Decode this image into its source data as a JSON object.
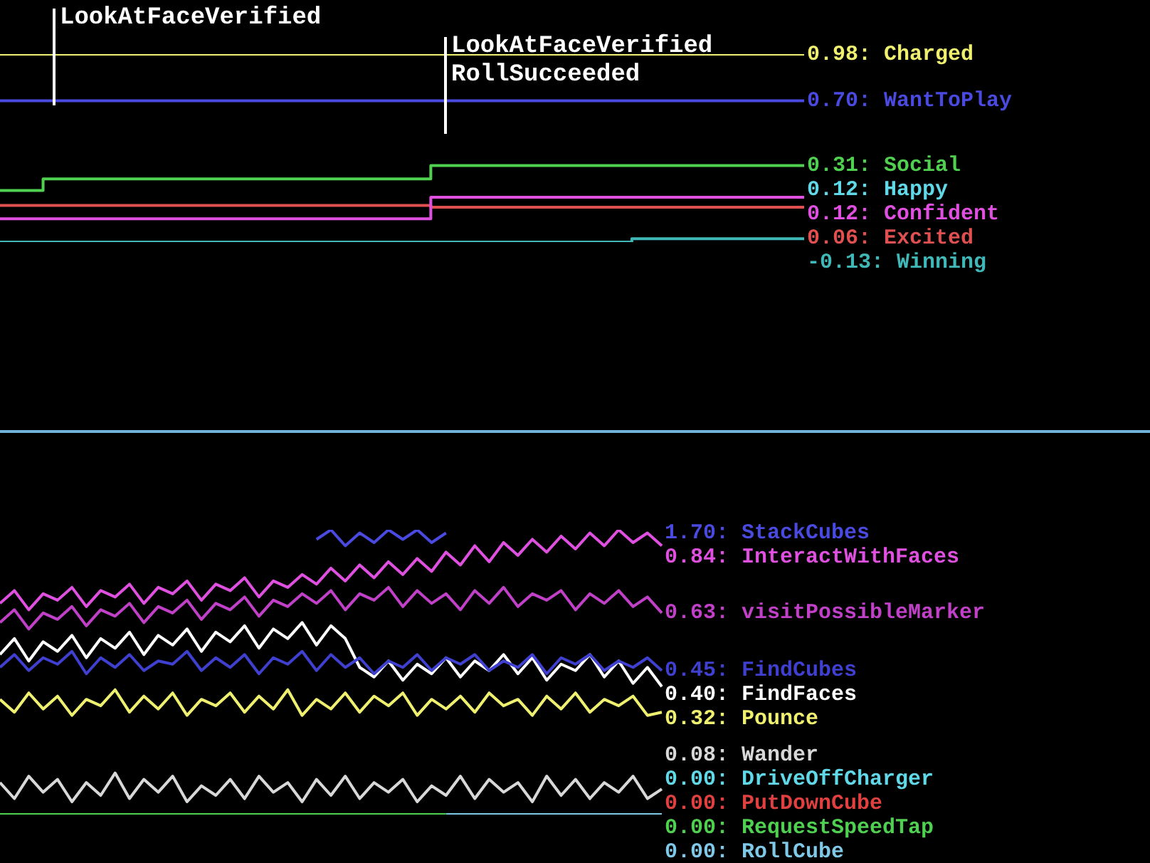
{
  "chart_data": [
    {
      "type": "step",
      "categories": [
        null,
        null,
        null,
        null,
        null,
        null,
        null,
        null,
        null,
        null,
        null,
        null,
        null,
        null,
        null,
        null,
        null,
        null,
        null,
        null,
        null,
        null,
        null,
        null,
        null,
        null,
        null,
        null,
        null,
        null,
        null,
        null,
        null,
        null,
        null,
        null,
        null,
        null,
        null,
        null,
        null,
        null,
        null,
        null,
        null,
        null,
        null,
        null,
        null,
        null,
        null,
        null,
        null,
        null,
        null,
        null,
        null
      ],
      "annotations": [
        "LookAtFaceVerified",
        "LookAtFaceVerified",
        "RollSucceeded"
      ],
      "series": [
        {
          "name": "Charged",
          "color": "#f0f070",
          "value_labels": [
            null,
            null,
            null,
            null,
            null,
            null,
            null,
            null,
            null,
            null,
            null,
            null,
            null,
            null,
            null,
            null,
            null,
            null,
            null,
            null,
            null,
            null,
            null,
            null,
            null,
            null,
            null,
            null,
            null,
            null,
            null,
            null,
            null,
            null,
            null,
            null,
            null,
            null,
            null,
            null,
            null,
            null,
            null,
            null,
            null,
            null,
            null,
            null,
            null,
            null,
            null,
            null,
            null,
            null,
            null,
            null,
            "0.98:"
          ],
          "values": [
            0.98,
            0.98,
            0.98,
            0.98,
            0.98,
            0.98,
            0.98,
            0.98,
            0.98,
            0.98,
            0.98,
            0.98,
            0.98,
            0.98,
            0.98,
            0.98,
            0.98,
            0.98,
            0.98,
            0.98,
            0.98,
            0.98,
            0.98,
            0.98,
            0.98,
            0.98,
            0.98,
            0.98,
            0.98,
            0.98,
            0.98,
            0.98,
            0.98,
            0.98,
            0.98,
            0.98,
            0.98,
            0.98,
            0.98,
            0.98,
            0.98,
            0.98,
            0.98,
            0.98,
            0.98,
            0.98,
            0.98,
            0.98,
            0.98,
            0.98,
            0.98,
            0.98,
            0.98,
            0.98,
            0.98,
            0.98,
            0.98
          ]
        },
        {
          "name": "WantToPlay",
          "color": "#4a4ae0",
          "value_labels": [
            null,
            null,
            null,
            null,
            null,
            null,
            null,
            null,
            null,
            null,
            null,
            null,
            null,
            null,
            null,
            null,
            null,
            null,
            null,
            null,
            null,
            null,
            null,
            null,
            null,
            null,
            null,
            null,
            null,
            null,
            null,
            null,
            null,
            null,
            null,
            null,
            null,
            null,
            null,
            null,
            null,
            null,
            null,
            null,
            null,
            null,
            null,
            null,
            null,
            null,
            null,
            null,
            null,
            null,
            null,
            null,
            "0.70:"
          ],
          "values": [
            0.7,
            0.7,
            0.7,
            0.7,
            0.7,
            0.7,
            0.7,
            0.7,
            0.7,
            0.7,
            0.7,
            0.7,
            0.7,
            0.7,
            0.7,
            0.7,
            0.7,
            0.7,
            0.7,
            0.7,
            0.7,
            0.7,
            0.7,
            0.7,
            0.7,
            0.7,
            0.7,
            0.7,
            0.7,
            0.7,
            0.7,
            0.7,
            0.7,
            0.7,
            0.7,
            0.7,
            0.7,
            0.7,
            0.7,
            0.7,
            0.7,
            0.7,
            0.7,
            0.7,
            0.7,
            0.7,
            0.7,
            0.7,
            0.7,
            0.7,
            0.7,
            0.7,
            0.7,
            0.7,
            0.7,
            0.7,
            0.7
          ]
        },
        {
          "name": "Social",
          "color": "#50d050",
          "value_labels": [
            null,
            null,
            null,
            null,
            null,
            null,
            null,
            null,
            null,
            null,
            null,
            null,
            null,
            null,
            null,
            null,
            null,
            null,
            null,
            null,
            null,
            null,
            null,
            null,
            null,
            null,
            null,
            null,
            null,
            null,
            null,
            null,
            null,
            null,
            null,
            null,
            null,
            null,
            null,
            null,
            null,
            null,
            null,
            null,
            null,
            null,
            null,
            null,
            null,
            null,
            null,
            null,
            null,
            null,
            null,
            null,
            "0.31:"
          ],
          "values": [
            0.16,
            0.16,
            0.16,
            0.16,
            0.23,
            0.23,
            0.23,
            0.23,
            0.23,
            0.23,
            0.23,
            0.23,
            0.23,
            0.23,
            0.23,
            0.23,
            0.23,
            0.23,
            0.23,
            0.23,
            0.23,
            0.23,
            0.23,
            0.23,
            0.23,
            0.23,
            0.23,
            0.23,
            0.23,
            0.23,
            0.23,
            0.31,
            0.31,
            0.31,
            0.31,
            0.31,
            0.31,
            0.31,
            0.31,
            0.31,
            0.31,
            0.31,
            0.31,
            0.31,
            0.31,
            0.31,
            0.31,
            0.31,
            0.31,
            0.31,
            0.31,
            0.31,
            0.31,
            0.31,
            0.31,
            0.31,
            0.31
          ]
        },
        {
          "name": "Happy",
          "color": "#60d8e8",
          "value_labels": [
            null,
            null,
            null,
            null,
            null,
            null,
            null,
            null,
            null,
            null,
            null,
            null,
            null,
            null,
            null,
            null,
            null,
            null,
            null,
            null,
            null,
            null,
            null,
            null,
            null,
            null,
            null,
            null,
            null,
            null,
            null,
            null,
            null,
            null,
            null,
            null,
            null,
            null,
            null,
            null,
            null,
            null,
            null,
            null,
            null,
            null,
            null,
            null,
            null,
            null,
            null,
            null,
            null,
            null,
            null,
            null,
            "0.12:"
          ],
          "values": [
            null,
            null,
            null,
            null,
            null,
            null,
            null,
            null,
            null,
            null,
            null,
            null,
            null,
            null,
            null,
            null,
            null,
            null,
            null,
            null,
            null,
            null,
            null,
            null,
            null,
            null,
            null,
            null,
            null,
            null,
            null,
            null,
            null,
            null,
            null,
            null,
            null,
            null,
            null,
            null,
            null,
            null,
            null,
            null,
            null,
            null,
            null,
            null,
            null,
            null,
            null,
            null,
            null,
            null,
            null,
            null,
            null
          ]
        },
        {
          "name": "Confident",
          "color": "#e050e0",
          "value_labels": [
            null,
            null,
            null,
            null,
            null,
            null,
            null,
            null,
            null,
            null,
            null,
            null,
            null,
            null,
            null,
            null,
            null,
            null,
            null,
            null,
            null,
            null,
            null,
            null,
            null,
            null,
            null,
            null,
            null,
            null,
            null,
            null,
            null,
            null,
            null,
            null,
            null,
            null,
            null,
            null,
            null,
            null,
            null,
            null,
            null,
            null,
            null,
            null,
            null,
            null,
            null,
            null,
            null,
            null,
            null,
            null,
            "0.12:"
          ],
          "values": [
            -0.01,
            -0.01,
            -0.01,
            -0.01,
            -0.01,
            -0.01,
            -0.01,
            -0.01,
            -0.01,
            -0.01,
            -0.01,
            -0.01,
            -0.01,
            -0.01,
            -0.01,
            -0.01,
            -0.01,
            -0.01,
            -0.01,
            -0.01,
            -0.01,
            -0.01,
            -0.01,
            -0.01,
            -0.01,
            -0.01,
            -0.01,
            -0.01,
            -0.01,
            -0.01,
            -0.01,
            0.12,
            0.12,
            0.12,
            0.12,
            0.12,
            0.12,
            0.12,
            0.12,
            0.12,
            0.12,
            0.12,
            0.12,
            0.12,
            0.12,
            0.12,
            0.12,
            0.12,
            0.12,
            0.12,
            0.12,
            0.12,
            0.12,
            0.12,
            0.12,
            0.12,
            0.12
          ]
        },
        {
          "name": "Excited",
          "color": "#e05050",
          "value_labels": [
            null,
            null,
            null,
            null,
            null,
            null,
            null,
            null,
            null,
            null,
            null,
            null,
            null,
            null,
            null,
            null,
            null,
            null,
            null,
            null,
            null,
            null,
            null,
            null,
            null,
            null,
            null,
            null,
            null,
            null,
            null,
            null,
            null,
            null,
            null,
            null,
            null,
            null,
            null,
            null,
            null,
            null,
            null,
            null,
            null,
            null,
            null,
            null,
            null,
            null,
            null,
            null,
            null,
            null,
            null,
            null,
            "0.06:"
          ],
          "values": [
            0.07,
            0.07,
            0.07,
            0.07,
            0.07,
            0.07,
            0.07,
            0.07,
            0.07,
            0.07,
            0.07,
            0.07,
            0.07,
            0.07,
            0.07,
            0.07,
            0.07,
            0.07,
            0.07,
            0.07,
            0.07,
            0.07,
            0.07,
            0.07,
            0.07,
            0.07,
            0.07,
            0.07,
            0.07,
            0.07,
            0.07,
            0.06,
            0.06,
            0.06,
            0.06,
            0.06,
            0.06,
            0.06,
            0.06,
            0.06,
            0.06,
            0.06,
            0.06,
            0.06,
            0.06,
            0.06,
            0.06,
            0.06,
            0.06,
            0.06,
            0.06,
            0.06,
            0.06,
            0.06,
            0.06,
            0.06,
            0.06
          ]
        },
        {
          "name": "Winning",
          "color": "#40b8b8",
          "value_labels": [
            null,
            null,
            null,
            null,
            null,
            null,
            null,
            null,
            null,
            null,
            null,
            null,
            null,
            null,
            null,
            null,
            null,
            null,
            null,
            null,
            null,
            null,
            null,
            null,
            null,
            null,
            null,
            null,
            null,
            null,
            null,
            null,
            null,
            null,
            null,
            null,
            null,
            null,
            null,
            null,
            null,
            null,
            null,
            null,
            null,
            null,
            null,
            null,
            null,
            null,
            null,
            null,
            null,
            null,
            null,
            null,
            "-0.13:"
          ],
          "values": [
            -0.15,
            -0.15,
            -0.15,
            -0.15,
            -0.15,
            -0.15,
            -0.15,
            -0.15,
            -0.15,
            -0.15,
            -0.15,
            -0.15,
            -0.15,
            -0.15,
            -0.15,
            -0.15,
            -0.15,
            -0.15,
            -0.15,
            -0.15,
            -0.15,
            -0.15,
            -0.15,
            -0.15,
            -0.15,
            -0.15,
            -0.15,
            -0.15,
            -0.15,
            -0.15,
            -0.15,
            -0.15,
            -0.15,
            -0.15,
            -0.15,
            -0.15,
            -0.15,
            -0.15,
            -0.15,
            -0.15,
            -0.15,
            -0.15,
            -0.15,
            -0.15,
            -0.15,
            -0.13,
            -0.13,
            -0.13,
            -0.13,
            -0.13,
            -0.13,
            -0.13,
            -0.13,
            -0.13,
            -0.13,
            -0.13,
            -0.13
          ]
        }
      ]
    },
    {
      "type": "line",
      "categories": [
        null,
        null,
        null,
        null,
        null,
        null,
        null,
        null,
        null,
        null,
        null,
        null,
        null,
        null,
        null,
        null,
        null,
        null,
        null,
        null,
        null,
        null,
        null,
        null,
        null,
        null,
        null,
        null,
        null,
        null,
        null,
        null,
        null,
        null,
        null,
        null,
        null,
        null,
        null,
        null,
        null,
        null,
        null,
        null,
        null,
        null,
        null
      ],
      "series": [
        {
          "name": "StackCubes",
          "color": "#4a4ae0",
          "value_labels": [
            null,
            null,
            null,
            null,
            null,
            null,
            null,
            null,
            null,
            null,
            null,
            null,
            null,
            null,
            null,
            null,
            null,
            null,
            null,
            null,
            null,
            null,
            null,
            null,
            null,
            null,
            null,
            null,
            null,
            null,
            null,
            null,
            null,
            null,
            null,
            null,
            null,
            null,
            null,
            null,
            null,
            null,
            null,
            null,
            null,
            null,
            "1.70:"
          ],
          "values": [
            null,
            null,
            null,
            null,
            null,
            null,
            null,
            null,
            null,
            null,
            null,
            null,
            null,
            null,
            null,
            null,
            null,
            null,
            null,
            null,
            null,
            null,
            0.86,
            0.89,
            0.84,
            0.88,
            0.85,
            0.89,
            0.86,
            0.89,
            0.85,
            0.88,
            null,
            null,
            null,
            null,
            null,
            null,
            null,
            null,
            null,
            null,
            null,
            null,
            null,
            null,
            null
          ]
        },
        {
          "name": "InteractWithFaces",
          "color": "#e050e0",
          "value_labels": [
            null,
            null,
            null,
            null,
            null,
            null,
            null,
            null,
            null,
            null,
            null,
            null,
            null,
            null,
            null,
            null,
            null,
            null,
            null,
            null,
            null,
            null,
            null,
            null,
            null,
            null,
            null,
            null,
            null,
            null,
            null,
            null,
            null,
            null,
            null,
            null,
            null,
            null,
            null,
            null,
            null,
            null,
            null,
            null,
            null,
            null,
            "0.84:"
          ],
          "values": [
            0.66,
            0.7,
            0.64,
            0.69,
            0.67,
            0.71,
            0.65,
            0.7,
            0.68,
            0.72,
            0.66,
            0.71,
            0.69,
            0.73,
            0.67,
            0.72,
            0.7,
            0.74,
            0.68,
            0.73,
            0.71,
            0.75,
            0.72,
            0.77,
            0.73,
            0.78,
            0.74,
            0.79,
            0.75,
            0.8,
            0.76,
            0.82,
            0.78,
            0.84,
            0.79,
            0.85,
            0.81,
            0.86,
            0.82,
            0.87,
            0.83,
            0.88,
            0.84,
            0.89,
            0.85,
            0.88,
            0.84
          ]
        },
        {
          "name": "visitPossibleMarker",
          "color": "#c040c8",
          "value_labels": [
            null,
            null,
            null,
            null,
            null,
            null,
            null,
            null,
            null,
            null,
            null,
            null,
            null,
            null,
            null,
            null,
            null,
            null,
            null,
            null,
            null,
            null,
            null,
            null,
            null,
            null,
            null,
            null,
            null,
            null,
            null,
            null,
            null,
            null,
            null,
            null,
            null,
            null,
            null,
            null,
            null,
            null,
            null,
            null,
            null,
            null,
            "0.63:"
          ],
          "values": [
            0.6,
            0.64,
            0.58,
            0.63,
            0.61,
            0.65,
            0.59,
            0.64,
            0.62,
            0.66,
            0.6,
            0.65,
            0.63,
            0.67,
            0.61,
            0.66,
            0.64,
            0.68,
            0.62,
            0.67,
            0.65,
            0.69,
            0.66,
            0.7,
            0.64,
            0.69,
            0.67,
            0.71,
            0.65,
            0.7,
            0.66,
            0.69,
            0.64,
            0.7,
            0.66,
            0.71,
            0.65,
            0.69,
            0.67,
            0.7,
            0.64,
            0.69,
            0.66,
            0.7,
            0.65,
            0.68,
            0.63
          ]
        },
        {
          "name": "FindCubes",
          "color": "#4040d0",
          "value_labels": [
            null,
            null,
            null,
            null,
            null,
            null,
            null,
            null,
            null,
            null,
            null,
            null,
            null,
            null,
            null,
            null,
            null,
            null,
            null,
            null,
            null,
            null,
            null,
            null,
            null,
            null,
            null,
            null,
            null,
            null,
            null,
            null,
            null,
            null,
            null,
            null,
            null,
            null,
            null,
            null,
            null,
            null,
            null,
            null,
            null,
            null,
            "0.45:"
          ],
          "values": [
            0.46,
            0.5,
            0.45,
            0.49,
            0.47,
            0.51,
            0.44,
            0.49,
            0.46,
            0.5,
            0.45,
            0.48,
            0.47,
            0.51,
            0.45,
            0.49,
            0.46,
            0.5,
            0.44,
            0.49,
            0.47,
            0.51,
            0.45,
            0.5,
            0.46,
            0.49,
            0.44,
            0.48,
            0.46,
            0.5,
            0.45,
            0.49,
            0.47,
            0.5,
            0.45,
            0.48,
            0.46,
            0.5,
            0.44,
            0.49,
            0.47,
            0.5,
            0.45,
            0.48,
            0.46,
            0.49,
            0.45
          ]
        },
        {
          "name": "FindFaces",
          "color": "#ffffff",
          "value_labels": [
            null,
            null,
            null,
            null,
            null,
            null,
            null,
            null,
            null,
            null,
            null,
            null,
            null,
            null,
            null,
            null,
            null,
            null,
            null,
            null,
            null,
            null,
            null,
            null,
            null,
            null,
            null,
            null,
            null,
            null,
            null,
            null,
            null,
            null,
            null,
            null,
            null,
            null,
            null,
            null,
            null,
            null,
            null,
            null,
            null,
            null,
            "0.40:"
          ],
          "values": [
            0.5,
            0.55,
            0.48,
            0.54,
            0.51,
            0.56,
            0.49,
            0.55,
            0.52,
            0.57,
            0.5,
            0.56,
            0.53,
            0.58,
            0.51,
            0.57,
            0.54,
            0.59,
            0.52,
            0.58,
            0.55,
            0.6,
            0.53,
            0.59,
            0.55,
            0.46,
            0.43,
            0.48,
            0.42,
            0.47,
            0.44,
            0.49,
            0.43,
            0.48,
            0.45,
            0.5,
            0.44,
            0.49,
            0.42,
            0.47,
            0.45,
            0.5,
            0.43,
            0.48,
            0.41,
            0.46,
            0.4
          ]
        },
        {
          "name": "Pounce",
          "color": "#f0f070",
          "value_labels": [
            null,
            null,
            null,
            null,
            null,
            null,
            null,
            null,
            null,
            null,
            null,
            null,
            null,
            null,
            null,
            null,
            null,
            null,
            null,
            null,
            null,
            null,
            null,
            null,
            null,
            null,
            null,
            null,
            null,
            null,
            null,
            null,
            null,
            null,
            null,
            null,
            null,
            null,
            null,
            null,
            null,
            null,
            null,
            null,
            null,
            null,
            "0.32:"
          ],
          "values": [
            0.36,
            0.32,
            0.38,
            0.33,
            0.37,
            0.31,
            0.36,
            0.34,
            0.39,
            0.32,
            0.37,
            0.33,
            0.38,
            0.31,
            0.36,
            0.34,
            0.38,
            0.32,
            0.37,
            0.33,
            0.39,
            0.31,
            0.36,
            0.33,
            0.38,
            0.32,
            0.37,
            0.34,
            0.38,
            0.31,
            0.36,
            0.33,
            0.37,
            0.32,
            0.38,
            0.34,
            0.36,
            0.31,
            0.37,
            0.33,
            0.38,
            0.32,
            0.36,
            0.34,
            0.37,
            0.31,
            0.32
          ]
        },
        {
          "name": "Wander",
          "color": "#d8d8d8",
          "value_labels": [
            null,
            null,
            null,
            null,
            null,
            null,
            null,
            null,
            null,
            null,
            null,
            null,
            null,
            null,
            null,
            null,
            null,
            null,
            null,
            null,
            null,
            null,
            null,
            null,
            null,
            null,
            null,
            null,
            null,
            null,
            null,
            null,
            null,
            null,
            null,
            null,
            null,
            null,
            null,
            null,
            null,
            null,
            null,
            null,
            null,
            null,
            "0.08:"
          ],
          "values": [
            0.1,
            0.05,
            0.12,
            0.07,
            0.11,
            0.04,
            0.1,
            0.06,
            0.13,
            0.05,
            0.11,
            0.07,
            0.12,
            0.04,
            0.09,
            0.06,
            0.11,
            0.05,
            0.12,
            0.07,
            0.1,
            0.04,
            0.11,
            0.06,
            0.12,
            0.05,
            0.1,
            0.07,
            0.11,
            0.04,
            0.09,
            0.06,
            0.12,
            0.05,
            0.11,
            0.07,
            0.1,
            0.04,
            0.12,
            0.06,
            0.11,
            0.05,
            0.1,
            0.07,
            0.12,
            0.05,
            0.08
          ]
        },
        {
          "name": "DriveOffCharger",
          "color": "#60d8e8",
          "value_labels": [
            null,
            null,
            null,
            null,
            null,
            null,
            null,
            null,
            null,
            null,
            null,
            null,
            null,
            null,
            null,
            null,
            null,
            null,
            null,
            null,
            null,
            null,
            null,
            null,
            null,
            null,
            null,
            null,
            null,
            null,
            null,
            null,
            null,
            null,
            null,
            null,
            null,
            null,
            null,
            null,
            null,
            null,
            null,
            null,
            null,
            null,
            "0.00:"
          ],
          "values": [
            null,
            null,
            null,
            null,
            null,
            null,
            null,
            null,
            null,
            null,
            null,
            null,
            null,
            null,
            null,
            null,
            null,
            null,
            null,
            null,
            null,
            null,
            null,
            null,
            null,
            null,
            null,
            null,
            null,
            null,
            null,
            null,
            null,
            null,
            null,
            null,
            null,
            null,
            null,
            null,
            null,
            null,
            null,
            null,
            null,
            null,
            null
          ]
        },
        {
          "name": "PutDownCube",
          "color": "#e04040",
          "value_labels": [
            null,
            null,
            null,
            null,
            null,
            null,
            null,
            null,
            null,
            null,
            null,
            null,
            null,
            null,
            null,
            null,
            null,
            null,
            null,
            null,
            null,
            null,
            null,
            null,
            null,
            null,
            null,
            null,
            null,
            null,
            null,
            null,
            null,
            null,
            null,
            null,
            null,
            null,
            null,
            null,
            null,
            null,
            null,
            null,
            null,
            null,
            "0.00:"
          ],
          "values": [
            null,
            null,
            null,
            null,
            null,
            null,
            null,
            null,
            null,
            null,
            null,
            null,
            null,
            null,
            null,
            null,
            null,
            null,
            null,
            null,
            null,
            null,
            null,
            null,
            null,
            null,
            null,
            null,
            null,
            null,
            null,
            null,
            null,
            null,
            null,
            null,
            null,
            null,
            null,
            null,
            null,
            null,
            null,
            null,
            null,
            null,
            null
          ]
        },
        {
          "name": "RequestSpeedTap",
          "color": "#50d050",
          "value_labels": [
            null,
            null,
            null,
            null,
            null,
            null,
            null,
            null,
            null,
            null,
            null,
            null,
            null,
            null,
            null,
            null,
            null,
            null,
            null,
            null,
            null,
            null,
            null,
            null,
            null,
            null,
            null,
            null,
            null,
            null,
            null,
            null,
            null,
            null,
            null,
            null,
            null,
            null,
            null,
            null,
            null,
            null,
            null,
            null,
            null,
            null,
            "0.00:"
          ],
          "values": [
            0,
            0,
            0,
            0,
            0,
            0,
            0,
            0,
            0,
            0,
            0,
            0,
            0,
            0,
            0,
            0,
            0,
            0,
            0,
            0,
            0,
            0,
            0,
            0,
            0,
            0,
            0,
            0,
            0,
            0,
            0,
            0,
            null,
            null,
            null,
            null,
            null,
            null,
            null,
            null,
            null,
            null,
            null,
            null,
            null,
            null,
            null
          ]
        },
        {
          "name": "RollCube",
          "color": "#80c8e8",
          "value_labels": [
            null,
            null,
            null,
            null,
            null,
            null,
            null,
            null,
            null,
            null,
            null,
            null,
            null,
            null,
            null,
            null,
            null,
            null,
            null,
            null,
            null,
            null,
            null,
            null,
            null,
            null,
            null,
            null,
            null,
            null,
            null,
            null,
            null,
            null,
            null,
            null,
            null,
            null,
            null,
            null,
            null,
            null,
            null,
            null,
            null,
            null,
            "0.00:"
          ],
          "values": [
            null,
            null,
            null,
            null,
            null,
            null,
            null,
            null,
            null,
            null,
            null,
            null,
            null,
            null,
            null,
            null,
            null,
            null,
            null,
            null,
            null,
            null,
            null,
            null,
            null,
            null,
            null,
            null,
            null,
            null,
            null,
            0,
            0,
            0,
            0,
            0,
            0,
            0,
            0,
            0,
            0,
            0,
            0,
            0,
            0,
            0,
            0
          ]
        }
      ]
    }
  ]
}
